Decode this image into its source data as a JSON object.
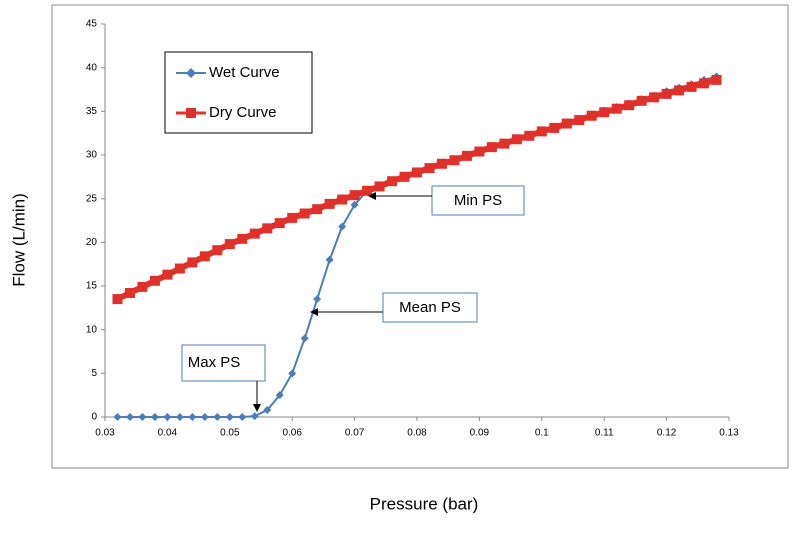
{
  "chart_data": {
    "type": "line",
    "x_label": "Pressure (bar)",
    "y_label": "Flow (L/min)",
    "xlim": [
      0.03,
      0.13
    ],
    "xticks": [
      0.03,
      0.04,
      0.05,
      0.06,
      0.07,
      0.08,
      0.09,
      0.1,
      0.11,
      0.12,
      0.13
    ],
    "ylim": [
      0,
      45
    ],
    "yticks": [
      0,
      5,
      10,
      15,
      20,
      25,
      30,
      35,
      40,
      45
    ],
    "grid": false,
    "legend": "top-left",
    "x": [
      0.032,
      0.034,
      0.036,
      0.038,
      0.04,
      0.042,
      0.044,
      0.046,
      0.048,
      0.05,
      0.052,
      0.054,
      0.056,
      0.058,
      0.06,
      0.062,
      0.064,
      0.066,
      0.068,
      0.07,
      0.072,
      0.074,
      0.076,
      0.078,
      0.08,
      0.082,
      0.084,
      0.086,
      0.088,
      0.09,
      0.092,
      0.094,
      0.096,
      0.098,
      0.1,
      0.102,
      0.104,
      0.106,
      0.108,
      0.11,
      0.112,
      0.114,
      0.116,
      0.118,
      0.12,
      0.122,
      0.124,
      0.126,
      0.128
    ],
    "series": [
      {
        "name": "Wet Curve",
        "color": "#4a7ebb",
        "marker": "diamond",
        "values": [
          0,
          0,
          0,
          0,
          0,
          0,
          0,
          0,
          0,
          0,
          0,
          0.1,
          0.8,
          2.5,
          5.0,
          9.0,
          13.5,
          18.0,
          21.8,
          24.3,
          25.9,
          26.4,
          27.0,
          27.5,
          28.0,
          28.5,
          29.0,
          29.4,
          29.9,
          30.4,
          30.9,
          31.3,
          31.8,
          32.2,
          32.7,
          33.2,
          33.7,
          34.1,
          34.6,
          35.1,
          35.5,
          35.9,
          36.4,
          36.8,
          37.3,
          37.7,
          38.1,
          38.6,
          39.0
        ]
      },
      {
        "name": "Dry Curve",
        "color": "#e0302a",
        "marker": "square",
        "values": [
          13.5,
          14.2,
          14.9,
          15.6,
          16.3,
          17.0,
          17.7,
          18.4,
          19.1,
          19.8,
          20.4,
          21.0,
          21.6,
          22.2,
          22.8,
          23.3,
          23.8,
          24.4,
          24.9,
          25.4,
          25.9,
          26.4,
          27.0,
          27.5,
          28.0,
          28.5,
          29.0,
          29.4,
          29.9,
          30.4,
          30.9,
          31.3,
          31.8,
          32.2,
          32.7,
          33.1,
          33.6,
          34.0,
          34.5,
          34.9,
          35.3,
          35.7,
          36.2,
          36.6,
          37.0,
          37.4,
          37.8,
          38.2,
          38.6
        ]
      }
    ],
    "annotations": [
      "Min PS",
      "Mean PS",
      "Max PS"
    ]
  }
}
